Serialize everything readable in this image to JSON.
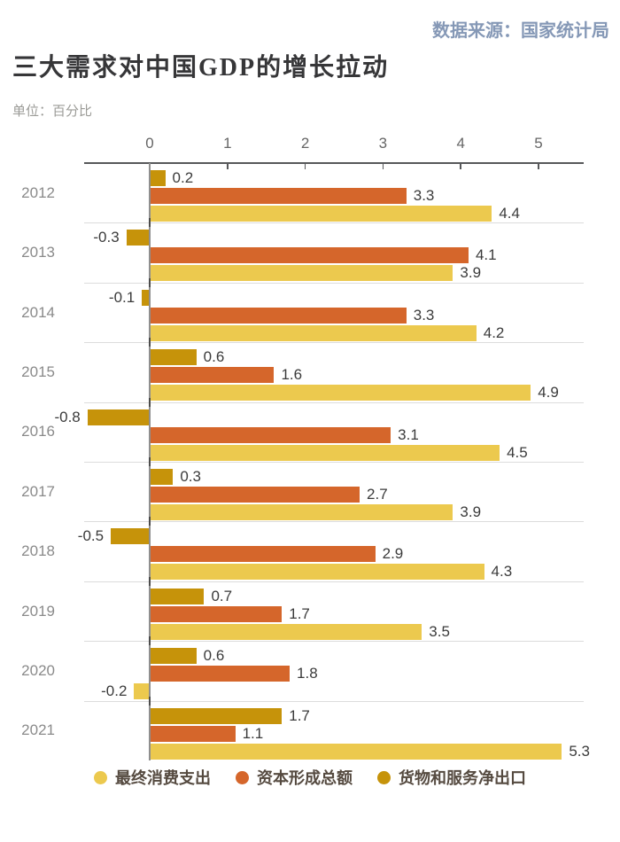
{
  "source": {
    "text": "数据来源：国家统计局"
  },
  "header": {
    "title": "三大需求对中国GDP的增长拉动",
    "unit": "单位：百分比"
  },
  "colors": {
    "consumption": "#ECC94E",
    "capital": "#D5662B",
    "net_exports": "#C6930A",
    "source_text": "#8598B6",
    "title_text": "#363638",
    "axis": "#57585a",
    "zero_line": "#8f8f8f",
    "separator": "#dcdcdc"
  },
  "chart_data": {
    "type": "bar",
    "orientation": "horizontal",
    "title": "三大需求对中国GDP的增长拉动",
    "unit_label": "单位：百分比",
    "categories": [
      "2012",
      "2013",
      "2014",
      "2015",
      "2016",
      "2017",
      "2018",
      "2019",
      "2020",
      "2021"
    ],
    "series": [
      {
        "id": "final-consumption",
        "name": "最终消费支出",
        "color": "#ECC94E",
        "values": [
          4.4,
          3.9,
          4.2,
          4.9,
          4.5,
          3.9,
          4.3,
          3.5,
          -0.2,
          5.3
        ]
      },
      {
        "id": "capital-formation",
        "name": "资本形成总额",
        "color": "#D5662B",
        "values": [
          3.3,
          4.1,
          3.3,
          1.6,
          3.1,
          2.7,
          2.9,
          1.7,
          1.8,
          1.1
        ]
      },
      {
        "id": "net-exports",
        "name": "货物和服务净出口",
        "color": "#C6930A",
        "values": [
          0.2,
          -0.3,
          -0.1,
          0.6,
          -0.8,
          0.3,
          -0.5,
          0.7,
          0.6,
          1.7
        ]
      }
    ],
    "x_ticks": [
      0,
      1,
      2,
      3,
      4,
      5
    ],
    "xlim": [
      -0.85,
      5.6
    ],
    "value_labels_shown": true,
    "grid": "row-separators",
    "legend_position": "bottom"
  }
}
